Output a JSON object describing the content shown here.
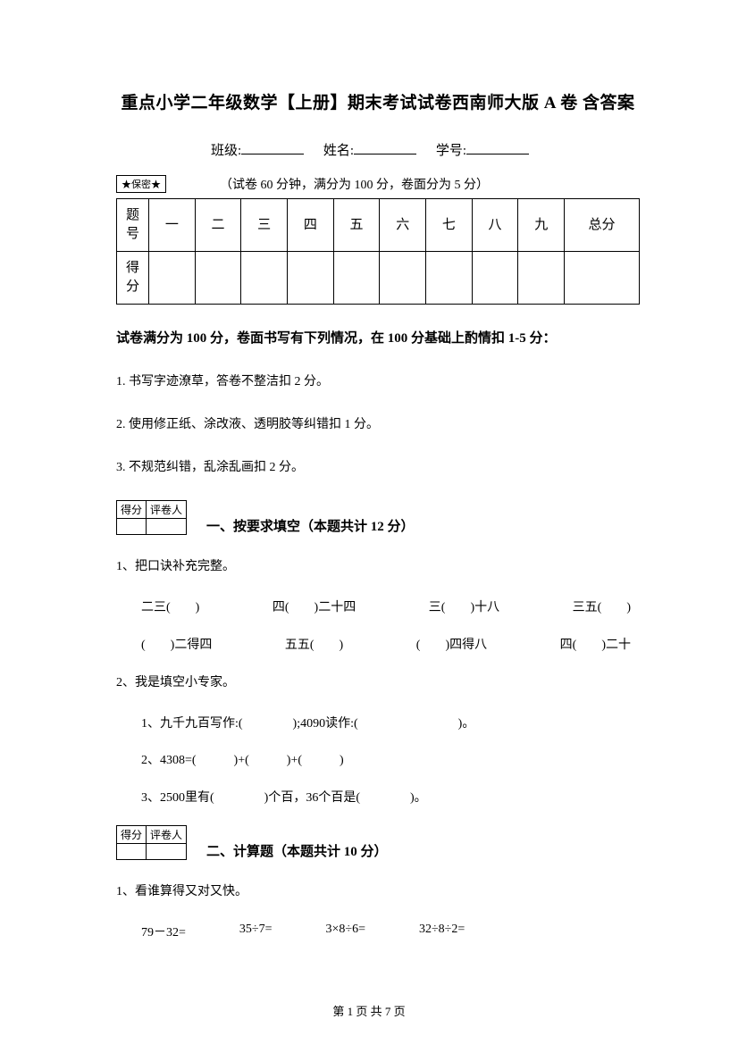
{
  "title": "重点小学二年级数学【上册】期末考试试卷西南师大版 A 卷  含答案",
  "info_labels": {
    "class": "班级:",
    "name": "姓名:",
    "id": "学号:"
  },
  "seal_text": "★保密★",
  "exam_meta": "（试卷 60 分钟，满分为 100 分，卷面分为 5 分）",
  "score_table": {
    "row1_label": "题号",
    "cols": [
      "一",
      "二",
      "三",
      "四",
      "五",
      "六",
      "七",
      "八",
      "九",
      "总分"
    ],
    "row2_label": "得分"
  },
  "bold_note": "试卷满分为 100 分，卷面书写有下列情况，在 100 分基础上酌情扣 1-5 分：",
  "rules": [
    "1. 书写字迹潦草，答卷不整洁扣 2 分。",
    "2. 使用修正纸、涂改液、透明胶等纠错扣 1 分。",
    "3. 不规范纠错，乱涂乱画扣 2 分。"
  ],
  "grader": {
    "score": "得分",
    "reviewer": "评卷人"
  },
  "section1": {
    "title": "一、按要求填空（本题共计 12 分）",
    "q1": "1、把口诀补充完整。",
    "q1_row1": [
      "二三(　　)",
      "四(　　)二十四",
      "三(　　)十八",
      "三五(　　)"
    ],
    "q1_row2": [
      "(　　)二得四",
      "五五(　　)",
      "(　　)四得八",
      "四(　　)二十"
    ],
    "q2": "2、我是填空小专家。",
    "q2_items": [
      "1、九千九百写作:(　　　　);4090读作:(　　　　　　　　)。",
      "2、4308=(　　　)+(　　　)+(　　　)",
      "3、2500里有(　　　　)个百，36个百是(　　　　)。"
    ]
  },
  "section2": {
    "title": "二、计算题（本题共计 10 分）",
    "q1": "1、看谁算得又对又快。",
    "calc_items": [
      "79－32=",
      "35÷7=",
      "3×8÷6=",
      "32÷8÷2="
    ]
  },
  "footer": "第 1 页 共 7 页"
}
